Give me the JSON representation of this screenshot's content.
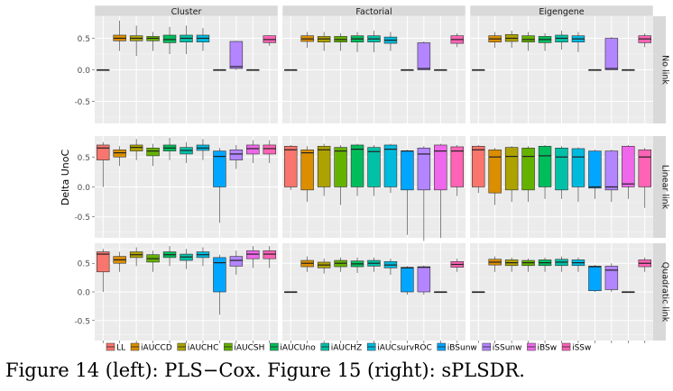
{
  "caption": "Figure 14 (left): PLS−Cox. Figure 15 (right): sPLSDR.",
  "chart_data": {
    "type": "box",
    "ylabel": "Delta UnoC",
    "ylim": [
      -0.85,
      0.85
    ],
    "yticks": [
      -0.5,
      0.0,
      0.5
    ],
    "ytick_labels": [
      "-0.5",
      "0.0",
      "0.5"
    ],
    "grid": true,
    "legend_position": "bottom",
    "columns": [
      "Cluster",
      "Factorial",
      "Eigengene"
    ],
    "rows": [
      "No link",
      "Linear link",
      "Quadratic link"
    ],
    "categories": [
      "LL",
      "iAUCCD",
      "iAUCHC",
      "iAUCSH",
      "iAUCUno",
      "iAUCHZ",
      "iAUCsurvROC",
      "iBSunw",
      "iSSunw",
      "iBSw",
      "iSSw"
    ],
    "colors": [
      "#F8766D",
      "#DB8E00",
      "#AEA200",
      "#64B200",
      "#00BD5C",
      "#00C1A7",
      "#00BADE",
      "#00A6FF",
      "#B385FF",
      "#EF67EB",
      "#FF63B6"
    ],
    "panels": [
      [
        [
          [
            0,
            0,
            0,
            0,
            0
          ],
          [
            0.46,
            0.5,
            0.55,
            0.3,
            0.78
          ],
          [
            0.46,
            0.5,
            0.54,
            0.22,
            0.7
          ],
          [
            0.46,
            0.5,
            0.53,
            0.3,
            0.6
          ],
          [
            0.43,
            0.48,
            0.55,
            0.25,
            0.68
          ],
          [
            0.44,
            0.5,
            0.55,
            0.25,
            0.7
          ],
          [
            0.44,
            0.5,
            0.55,
            0.3,
            0.66
          ],
          [
            0,
            0,
            0,
            0,
            0
          ],
          [
            0.02,
            0.05,
            0.45,
            0,
            0.46
          ],
          [
            0,
            0,
            0,
            0,
            0
          ],
          [
            0.43,
            0.48,
            0.54,
            0.38,
            0.55
          ]
        ],
        [
          [
            0,
            0,
            0,
            0,
            0
          ],
          [
            0.45,
            0.49,
            0.54,
            0.35,
            0.6
          ],
          [
            0.44,
            0.49,
            0.53,
            0.3,
            0.6
          ],
          [
            0.44,
            0.48,
            0.53,
            0.3,
            0.58
          ],
          [
            0.44,
            0.49,
            0.54,
            0.28,
            0.6
          ],
          [
            0.44,
            0.49,
            0.54,
            0.28,
            0.62
          ],
          [
            0.42,
            0.47,
            0.52,
            0.3,
            0.6
          ],
          [
            0,
            0,
            0,
            0,
            0
          ],
          [
            0,
            0.02,
            0.43,
            0,
            0.45
          ],
          [
            0,
            0,
            0,
            0,
            0
          ],
          [
            0.42,
            0.48,
            0.54,
            0.36,
            0.58
          ]
        ],
        [
          [
            0,
            0,
            0,
            0,
            0
          ],
          [
            0.44,
            0.49,
            0.54,
            0.35,
            0.6
          ],
          [
            0.45,
            0.5,
            0.56,
            0.35,
            0.62
          ],
          [
            0.44,
            0.48,
            0.54,
            0.3,
            0.6
          ],
          [
            0.43,
            0.48,
            0.53,
            0.3,
            0.58
          ],
          [
            0.44,
            0.5,
            0.55,
            0.32,
            0.62
          ],
          [
            0.44,
            0.49,
            0.54,
            0.28,
            0.6
          ],
          [
            0,
            0,
            0,
            0,
            0
          ],
          [
            0,
            0.02,
            0.5,
            0,
            0.52
          ],
          [
            0,
            0,
            0,
            0,
            0
          ],
          [
            0.43,
            0.49,
            0.54,
            0.36,
            0.58
          ]
        ]
      ],
      [
        [
          [
            0.45,
            0.65,
            0.7,
            0.0,
            0.75
          ],
          [
            0.5,
            0.57,
            0.62,
            0.35,
            0.68
          ],
          [
            0.6,
            0.66,
            0.7,
            0.45,
            0.8
          ],
          [
            0.52,
            0.6,
            0.65,
            0.35,
            0.72
          ],
          [
            0.6,
            0.65,
            0.7,
            0.45,
            0.82
          ],
          [
            0.55,
            0.61,
            0.66,
            0.4,
            0.75
          ],
          [
            0.61,
            0.65,
            0.7,
            0.45,
            0.8
          ],
          [
            0.0,
            0.51,
            0.6,
            -0.6,
            0.65
          ],
          [
            0.45,
            0.55,
            0.62,
            0.3,
            0.7
          ],
          [
            0.55,
            0.64,
            0.7,
            0.4,
            0.78
          ],
          [
            0.55,
            0.64,
            0.7,
            0.4,
            0.78
          ]
        ],
        [
          [
            0.0,
            0.62,
            0.68,
            -0.05,
            0.7
          ],
          [
            -0.05,
            0.57,
            0.62,
            -0.25,
            0.68
          ],
          [
            0.0,
            0.62,
            0.68,
            -0.15,
            0.72
          ],
          [
            0.0,
            0.6,
            0.66,
            -0.3,
            0.7
          ],
          [
            0.0,
            0.63,
            0.7,
            -0.15,
            0.72
          ],
          [
            0.0,
            0.59,
            0.66,
            -0.15,
            0.7
          ],
          [
            0.0,
            0.63,
            0.7,
            -0.1,
            0.72
          ],
          [
            -0.05,
            0.6,
            0.6,
            -0.8,
            0.62
          ],
          [
            -0.05,
            0.55,
            0.65,
            -0.9,
            0.68
          ],
          [
            -0.05,
            0.6,
            0.7,
            -0.85,
            0.72
          ],
          [
            0.0,
            0.6,
            0.67,
            -0.15,
            0.7
          ]
        ],
        [
          [
            0.0,
            0.62,
            0.68,
            -0.1,
            0.7
          ],
          [
            -0.1,
            0.5,
            0.62,
            -0.3,
            0.65
          ],
          [
            -0.05,
            0.51,
            0.66,
            -0.25,
            0.68
          ],
          [
            -0.05,
            0.51,
            0.65,
            -0.25,
            0.68
          ],
          [
            0.0,
            0.52,
            0.68,
            -0.2,
            0.7
          ],
          [
            -0.05,
            0.5,
            0.65,
            -0.2,
            0.68
          ],
          [
            0.0,
            0.5,
            0.64,
            -0.25,
            0.66
          ],
          [
            -0.02,
            0.0,
            0.6,
            -0.2,
            0.62
          ],
          [
            -0.05,
            0.0,
            0.6,
            -0.25,
            0.62
          ],
          [
            0.0,
            0.05,
            0.68,
            -0.2,
            0.7
          ],
          [
            0.0,
            0.5,
            0.62,
            -0.35,
            0.65
          ]
        ]
      ],
      [
        [
          [
            0.35,
            0.66,
            0.7,
            0.0,
            0.75
          ],
          [
            0.5,
            0.56,
            0.62,
            0.35,
            0.7
          ],
          [
            0.6,
            0.65,
            0.7,
            0.45,
            0.78
          ],
          [
            0.52,
            0.58,
            0.65,
            0.35,
            0.72
          ],
          [
            0.6,
            0.65,
            0.7,
            0.45,
            0.8
          ],
          [
            0.55,
            0.61,
            0.66,
            0.4,
            0.75
          ],
          [
            0.6,
            0.65,
            0.7,
            0.45,
            0.78
          ],
          [
            0.0,
            0.51,
            0.6,
            -0.4,
            0.65
          ],
          [
            0.45,
            0.55,
            0.62,
            0.3,
            0.72
          ],
          [
            0.58,
            0.66,
            0.72,
            0.42,
            0.8
          ],
          [
            0.58,
            0.66,
            0.72,
            0.42,
            0.8
          ]
        ],
        [
          [
            0,
            0,
            0,
            0,
            0
          ],
          [
            0.44,
            0.5,
            0.55,
            0.35,
            0.62
          ],
          [
            0.42,
            0.47,
            0.52,
            0.32,
            0.58
          ],
          [
            0.44,
            0.5,
            0.55,
            0.35,
            0.6
          ],
          [
            0.44,
            0.49,
            0.54,
            0.33,
            0.6
          ],
          [
            0.45,
            0.5,
            0.55,
            0.35,
            0.6
          ],
          [
            0.42,
            0.47,
            0.53,
            0.3,
            0.58
          ],
          [
            0.0,
            0.42,
            0.43,
            -0.05,
            0.45
          ],
          [
            0.0,
            0.43,
            0.44,
            -0.05,
            0.46
          ],
          [
            0,
            0,
            0,
            0,
            0
          ],
          [
            0.43,
            0.48,
            0.53,
            0.35,
            0.58
          ]
        ],
        [
          [
            0,
            0,
            0,
            0,
            0
          ],
          [
            0.47,
            0.52,
            0.57,
            0.35,
            0.62
          ],
          [
            0.46,
            0.51,
            0.56,
            0.35,
            0.6
          ],
          [
            0.46,
            0.51,
            0.55,
            0.35,
            0.58
          ],
          [
            0.46,
            0.51,
            0.56,
            0.35,
            0.6
          ],
          [
            0.46,
            0.52,
            0.57,
            0.35,
            0.62
          ],
          [
            0.46,
            0.51,
            0.56,
            0.35,
            0.6
          ],
          [
            0.02,
            0.44,
            0.45,
            0.0,
            0.47
          ],
          [
            0.04,
            0.38,
            0.45,
            0.0,
            0.5
          ],
          [
            0,
            0,
            0,
            0,
            0
          ],
          [
            0.44,
            0.5,
            0.56,
            0.35,
            0.6
          ]
        ]
      ]
    ]
  }
}
